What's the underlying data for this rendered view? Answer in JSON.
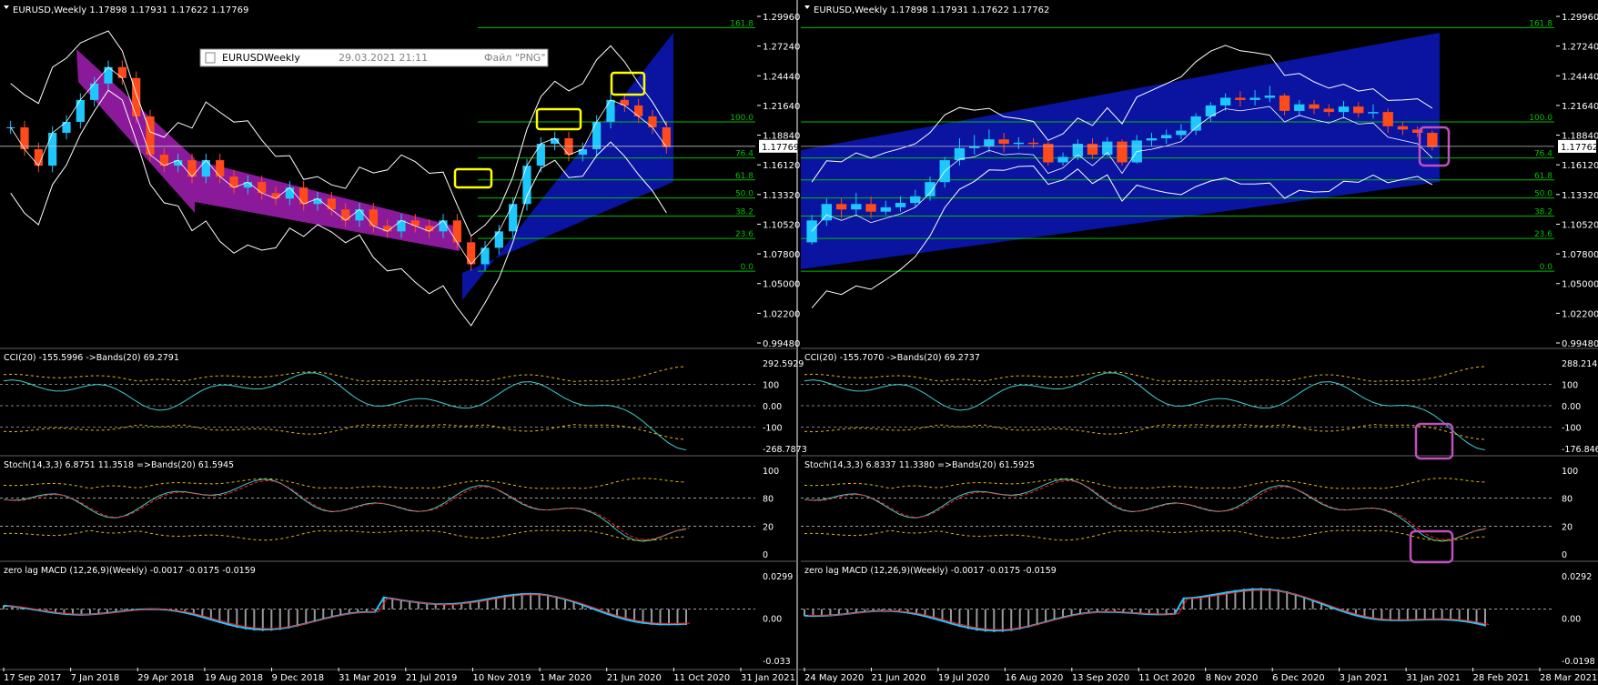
{
  "chart_data": [
    {
      "type": "candlestick",
      "panel": "left",
      "title": "EURUSD,Weekly  1.17898 1.17931 1.17622 1.17769",
      "screenshot_label": {
        "name": "EURUSDWeekly",
        "datetime": "29.03.2021 21:11",
        "file": "Файл \"PNG\""
      },
      "price_range": [
        0.9948,
        1.3096
      ],
      "price_ticks": [
        "1.29960",
        "1.27240",
        "1.24440",
        "1.21640",
        "1.18840",
        "1.16120",
        "1.13320",
        "1.10520",
        "1.07800",
        "1.05000",
        "1.02200",
        "0.99480"
      ],
      "current_price": "1.17769",
      "x_labels": [
        "17 Sep 2017",
        "7 Jan 2018",
        "29 Apr 2018",
        "19 Aug 2018",
        "9 Dec 2018",
        "31 Mar 2019",
        "21 Jul 2019",
        "10 Nov 2019",
        "1 Mar 2020",
        "21 Jun 2020",
        "11 Oct 2020",
        "31 Jan 2021"
      ],
      "fib_levels": [
        {
          "label": "161.8",
          "price": 1.286
        },
        {
          "label": "100.0",
          "price": 1.2
        },
        {
          "label": "76.4",
          "price": 1.167
        },
        {
          "label": "61.8",
          "price": 1.147
        },
        {
          "label": "50.0",
          "price": 1.1305
        },
        {
          "label": "38.2",
          "price": 1.114
        },
        {
          "label": "23.6",
          "price": 1.0935
        },
        {
          "label": "0.0",
          "price": 1.0636
        }
      ],
      "price_path": [
        [
          0,
          1.195
        ],
        [
          1,
          1.175
        ],
        [
          2,
          1.16
        ],
        [
          3,
          1.19
        ],
        [
          4,
          1.2
        ],
        [
          5,
          1.22
        ],
        [
          6,
          1.235
        ],
        [
          7,
          1.25
        ],
        [
          8,
          1.24
        ],
        [
          9,
          1.205
        ],
        [
          10,
          1.17
        ],
        [
          11,
          1.16
        ],
        [
          12,
          1.165
        ],
        [
          13,
          1.15
        ],
        [
          14,
          1.165
        ],
        [
          15,
          1.15
        ],
        [
          16,
          1.14
        ],
        [
          17,
          1.145
        ],
        [
          18,
          1.135
        ],
        [
          19,
          1.13
        ],
        [
          20,
          1.14
        ],
        [
          21,
          1.125
        ],
        [
          22,
          1.13
        ],
        [
          23,
          1.12
        ],
        [
          24,
          1.11
        ],
        [
          25,
          1.12
        ],
        [
          26,
          1.105
        ],
        [
          27,
          1.1
        ],
        [
          28,
          1.11
        ],
        [
          29,
          1.105
        ],
        [
          30,
          1.1
        ],
        [
          31,
          1.11
        ],
        [
          32,
          1.09
        ],
        [
          33,
          1.07
        ],
        [
          34,
          1.085
        ],
        [
          35,
          1.1
        ],
        [
          36,
          1.125
        ],
        [
          37,
          1.16
        ],
        [
          38,
          1.18
        ],
        [
          39,
          1.185
        ],
        [
          40,
          1.17
        ],
        [
          41,
          1.175
        ],
        [
          42,
          1.2
        ],
        [
          43,
          1.22
        ],
        [
          44,
          1.215
        ],
        [
          45,
          1.205
        ],
        [
          46,
          1.195
        ],
        [
          47,
          1.177
        ]
      ],
      "annotations": [
        "yellow boxes",
        "purple descending channel",
        "blue rising channel"
      ]
    },
    {
      "type": "candlestick",
      "panel": "right",
      "title": "EURUSD,Weekly  1.17898 1.17931 1.17622 1.17762",
      "price_range": [
        0.9948,
        1.3096
      ],
      "price_ticks": [
        "1.29960",
        "1.27240",
        "1.24440",
        "1.21640",
        "1.18840",
        "1.16120",
        "1.13320",
        "1.10520",
        "1.07800",
        "1.05000",
        "1.02200",
        "0.99480"
      ],
      "current_price": "1.17762",
      "x_labels": [
        "24 May 2020",
        "21 Jun 2020",
        "19 Jul 2020",
        "16 Aug 2020",
        "13 Sep 2020",
        "11 Oct 2020",
        "8 Nov 2020",
        "6 Dec 2020",
        "3 Jan 2021",
        "31 Jan 2021",
        "28 Feb 2021",
        "28 Mar 2021"
      ],
      "fib_levels": [
        {
          "label": "161.8",
          "price": 1.286
        },
        {
          "label": "100.0",
          "price": 1.2
        },
        {
          "label": "76.4",
          "price": 1.167
        },
        {
          "label": "61.8",
          "price": 1.147
        },
        {
          "label": "50.0",
          "price": 1.1305
        },
        {
          "label": "38.2",
          "price": 1.114
        },
        {
          "label": "23.6",
          "price": 1.0935
        },
        {
          "label": "0.0",
          "price": 1.0636
        }
      ],
      "candles": [
        {
          "o": 1.09,
          "c": 1.11,
          "h": 1.115,
          "l": 1.088
        },
        {
          "o": 1.11,
          "c": 1.125,
          "h": 1.13,
          "l": 1.105
        },
        {
          "o": 1.125,
          "c": 1.12,
          "h": 1.13,
          "l": 1.112
        },
        {
          "o": 1.12,
          "c": 1.125,
          "h": 1.135,
          "l": 1.115
        },
        {
          "o": 1.125,
          "c": 1.118,
          "h": 1.132,
          "l": 1.112
        },
        {
          "o": 1.118,
          "c": 1.122,
          "h": 1.128,
          "l": 1.115
        },
        {
          "o": 1.122,
          "c": 1.126,
          "h": 1.132,
          "l": 1.118
        },
        {
          "o": 1.126,
          "c": 1.132,
          "h": 1.138,
          "l": 1.122
        },
        {
          "o": 1.132,
          "c": 1.145,
          "h": 1.15,
          "l": 1.128
        },
        {
          "o": 1.145,
          "c": 1.165,
          "h": 1.168,
          "l": 1.14
        },
        {
          "o": 1.165,
          "c": 1.176,
          "h": 1.185,
          "l": 1.16
        },
        {
          "o": 1.176,
          "c": 1.178,
          "h": 1.188,
          "l": 1.17
        },
        {
          "o": 1.178,
          "c": 1.184,
          "h": 1.193,
          "l": 1.172
        },
        {
          "o": 1.184,
          "c": 1.18,
          "h": 1.19,
          "l": 1.172
        },
        {
          "o": 1.18,
          "c": 1.181,
          "h": 1.186,
          "l": 1.175
        },
        {
          "o": 1.181,
          "c": 1.18,
          "h": 1.185,
          "l": 1.176
        },
        {
          "o": 1.18,
          "c": 1.163,
          "h": 1.182,
          "l": 1.16
        },
        {
          "o": 1.163,
          "c": 1.168,
          "h": 1.172,
          "l": 1.16
        },
        {
          "o": 1.168,
          "c": 1.18,
          "h": 1.184,
          "l": 1.165
        },
        {
          "o": 1.18,
          "c": 1.17,
          "h": 1.185,
          "l": 1.166
        },
        {
          "o": 1.17,
          "c": 1.182,
          "h": 1.186,
          "l": 1.168
        },
        {
          "o": 1.182,
          "c": 1.163,
          "h": 1.184,
          "l": 1.16
        },
        {
          "o": 1.163,
          "c": 1.183,
          "h": 1.188,
          "l": 1.162
        },
        {
          "o": 1.183,
          "c": 1.185,
          "h": 1.19,
          "l": 1.178
        },
        {
          "o": 1.185,
          "c": 1.188,
          "h": 1.193,
          "l": 1.18
        },
        {
          "o": 1.188,
          "c": 1.192,
          "h": 1.198,
          "l": 1.184
        },
        {
          "o": 1.192,
          "c": 1.205,
          "h": 1.208,
          "l": 1.188
        },
        {
          "o": 1.205,
          "c": 1.215,
          "h": 1.218,
          "l": 1.2
        },
        {
          "o": 1.215,
          "c": 1.222,
          "h": 1.226,
          "l": 1.21
        },
        {
          "o": 1.222,
          "c": 1.22,
          "h": 1.228,
          "l": 1.214
        },
        {
          "o": 1.22,
          "c": 1.222,
          "h": 1.229,
          "l": 1.215
        },
        {
          "o": 1.222,
          "c": 1.224,
          "h": 1.233,
          "l": 1.218
        },
        {
          "o": 1.224,
          "c": 1.21,
          "h": 1.226,
          "l": 1.206
        },
        {
          "o": 1.21,
          "c": 1.216,
          "h": 1.22,
          "l": 1.205
        },
        {
          "o": 1.216,
          "c": 1.212,
          "h": 1.22,
          "l": 1.207
        },
        {
          "o": 1.212,
          "c": 1.209,
          "h": 1.216,
          "l": 1.205
        },
        {
          "o": 1.209,
          "c": 1.214,
          "h": 1.219,
          "l": 1.203
        },
        {
          "o": 1.214,
          "c": 1.208,
          "h": 1.218,
          "l": 1.204
        },
        {
          "o": 1.208,
          "c": 1.209,
          "h": 1.216,
          "l": 1.203
        },
        {
          "o": 1.209,
          "c": 1.196,
          "h": 1.212,
          "l": 1.19
        },
        {
          "o": 1.196,
          "c": 1.193,
          "h": 1.2,
          "l": 1.188
        },
        {
          "o": 1.193,
          "c": 1.19,
          "h": 1.196,
          "l": 1.186
        },
        {
          "o": 1.19,
          "c": 1.177,
          "h": 1.192,
          "l": 1.174
        }
      ],
      "annotations": [
        "magenta box on last candle",
        "blue rising channel"
      ]
    }
  ],
  "indicators": {
    "left": {
      "cci": {
        "label": "CCI(20) -155.5996  ->Bands(20) 69.2791",
        "ticks": [
          "292.5929",
          "100",
          "0.00",
          "-100",
          "-268.7873"
        ]
      },
      "stoch": {
        "label": "Stoch(14,3,3) 6.8751 11.3518  =>Bands(20) 61.5945",
        "ticks": [
          "100",
          "80",
          "20",
          "0"
        ]
      },
      "macd": {
        "label": "zero lag MACD (12,26,9)(Weekly) -0.0017 -0.0175 -0.0159",
        "ticks": [
          "0.0299",
          "0.00",
          "-0.033"
        ]
      }
    },
    "right": {
      "cci": {
        "label": "CCI(20) -155.7070  ->Bands(20) 69.2737",
        "ticks": [
          "288.2147",
          "100",
          "0.00",
          "-100",
          "-176.8462"
        ]
      },
      "stoch": {
        "label": "Stoch(14,3,3) 6.8337 11.3380  =>Bands(20) 61.5925",
        "ticks": [
          "100",
          "80",
          "20",
          "0"
        ]
      },
      "macd": {
        "label": "zero lag MACD (12,26,9)(Weekly) -0.0017 -0.0175 -0.0159",
        "ticks": [
          "0.0292",
          "0.00",
          "-0.0198"
        ]
      }
    }
  },
  "colors": {
    "background": "#000000",
    "bull": "#1ec8ff",
    "bear": "#ff4a1a",
    "fib": "#00c000",
    "channel": "#0a14a0",
    "purple_channel": "#8b1a9a",
    "band": "#ffffff",
    "grid_text": "#ffffff",
    "indicator_line": "#40d0d0",
    "indicator_band": "#e0c000",
    "signal": "#ff2020",
    "highlight_yellow": "#ffff00",
    "highlight_magenta": "#c050c0"
  }
}
